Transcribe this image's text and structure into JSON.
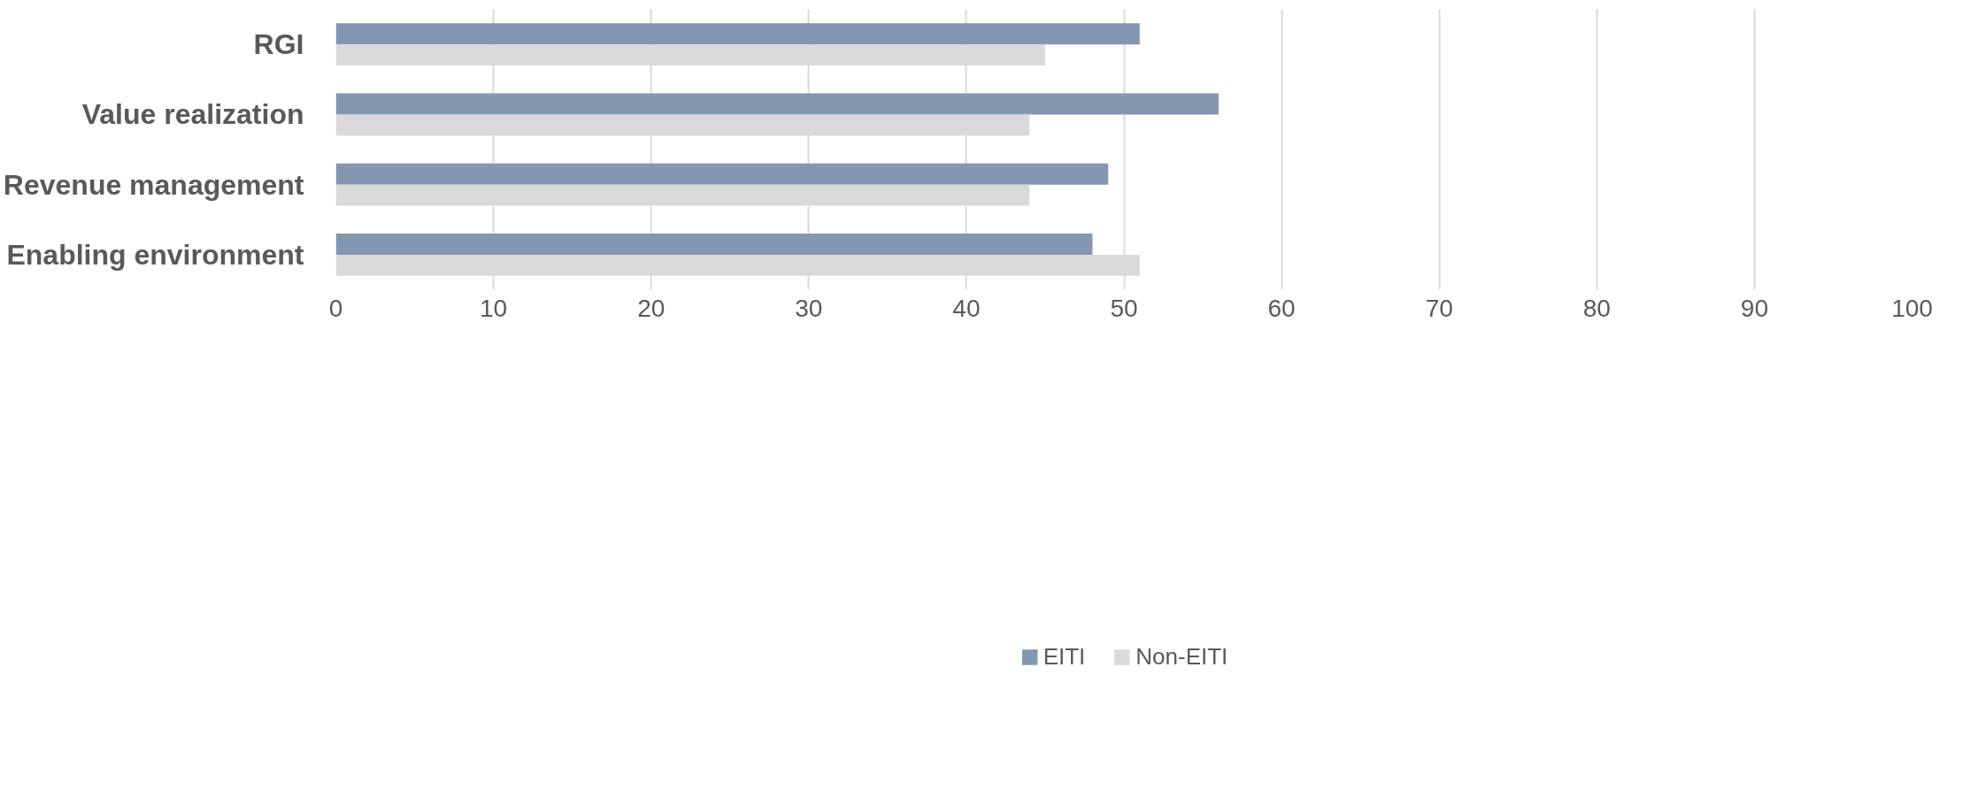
{
  "chart_data": {
    "type": "bar",
    "orientation": "horizontal",
    "categories": [
      "RGI",
      "Value realization",
      "Revenue management",
      "Enabling environment"
    ],
    "series": [
      {
        "name": "EITI",
        "color": "#8497b0",
        "values": [
          51,
          56,
          49,
          48
        ]
      },
      {
        "name": "Non-EITI",
        "color": "#d9d9d9",
        "values": [
          45,
          44,
          44,
          51
        ]
      }
    ],
    "xlim": [
      0,
      100
    ],
    "xticks": [
      0,
      10,
      20,
      30,
      40,
      50,
      60,
      70,
      80,
      90,
      100
    ],
    "grid": "x",
    "legend": "bottom"
  }
}
